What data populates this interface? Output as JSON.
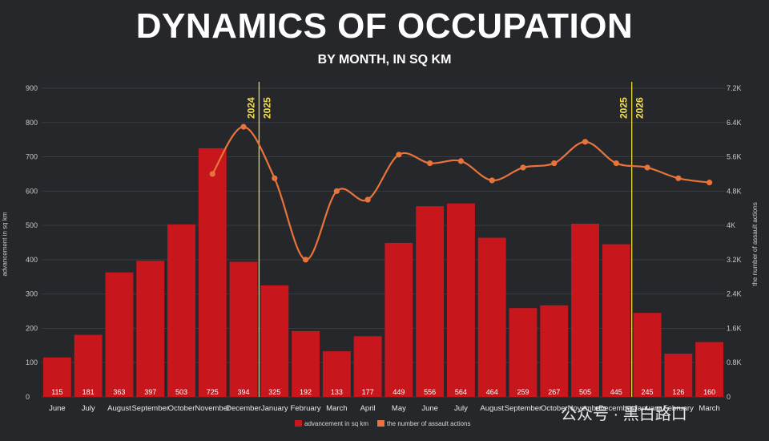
{
  "chart_data": {
    "type": "bar",
    "title": "DYNAMICS OF OCCUPATION",
    "subtitle": "BY MONTH, IN SQ KM",
    "categories": [
      "June",
      "July",
      "August",
      "September",
      "October",
      "November",
      "December",
      "January",
      "February",
      "March",
      "April",
      "May",
      "June",
      "July",
      "August",
      "September",
      "October",
      "November",
      "December",
      "January",
      "February",
      "March"
    ],
    "series": [
      {
        "name": "advancement in sq km",
        "type": "bar",
        "axis": "left",
        "color": "#c8161d",
        "values": [
          115,
          181,
          363,
          397,
          503,
          725,
          394,
          325,
          192,
          133,
          177,
          449,
          556,
          564,
          464,
          259,
          267,
          505,
          445,
          245,
          126,
          160
        ]
      },
      {
        "name": "the number of assault actions",
        "type": "line",
        "axis": "right",
        "color": "#e8743b",
        "values": [
          null,
          null,
          null,
          null,
          null,
          5200,
          6300,
          5100,
          3200,
          4800,
          4600,
          5650,
          5450,
          5500,
          5050,
          5350,
          5450,
          5950,
          5450,
          5350,
          5100,
          5000
        ]
      }
    ],
    "ylabel": "advancement in sq km",
    "ylabel_right": "the number of assault actions",
    "ylim": [
      0,
      900
    ],
    "ylim_right": [
      0,
      7200
    ],
    "yticks": [
      "0",
      "100",
      "200",
      "300",
      "400",
      "500",
      "600",
      "700",
      "800",
      "900"
    ],
    "yticks_right": [
      "0",
      "0.8K",
      "1.6K",
      "2.4K",
      "3.2K",
      "4K",
      "4.8K",
      "5.6K",
      "6.4K",
      "7.2K"
    ],
    "year_markers": [
      {
        "after_index": 6,
        "left_year": "2024",
        "right_year": "2025"
      },
      {
        "after_index": 18,
        "left_year": "2025",
        "right_year": "2026"
      }
    ],
    "legend": [
      "advancement in sq km",
      "the number of assault actions"
    ],
    "legend_position": "bottom-center",
    "grid": true
  },
  "watermark_text": "公众号 · 黑白路口"
}
